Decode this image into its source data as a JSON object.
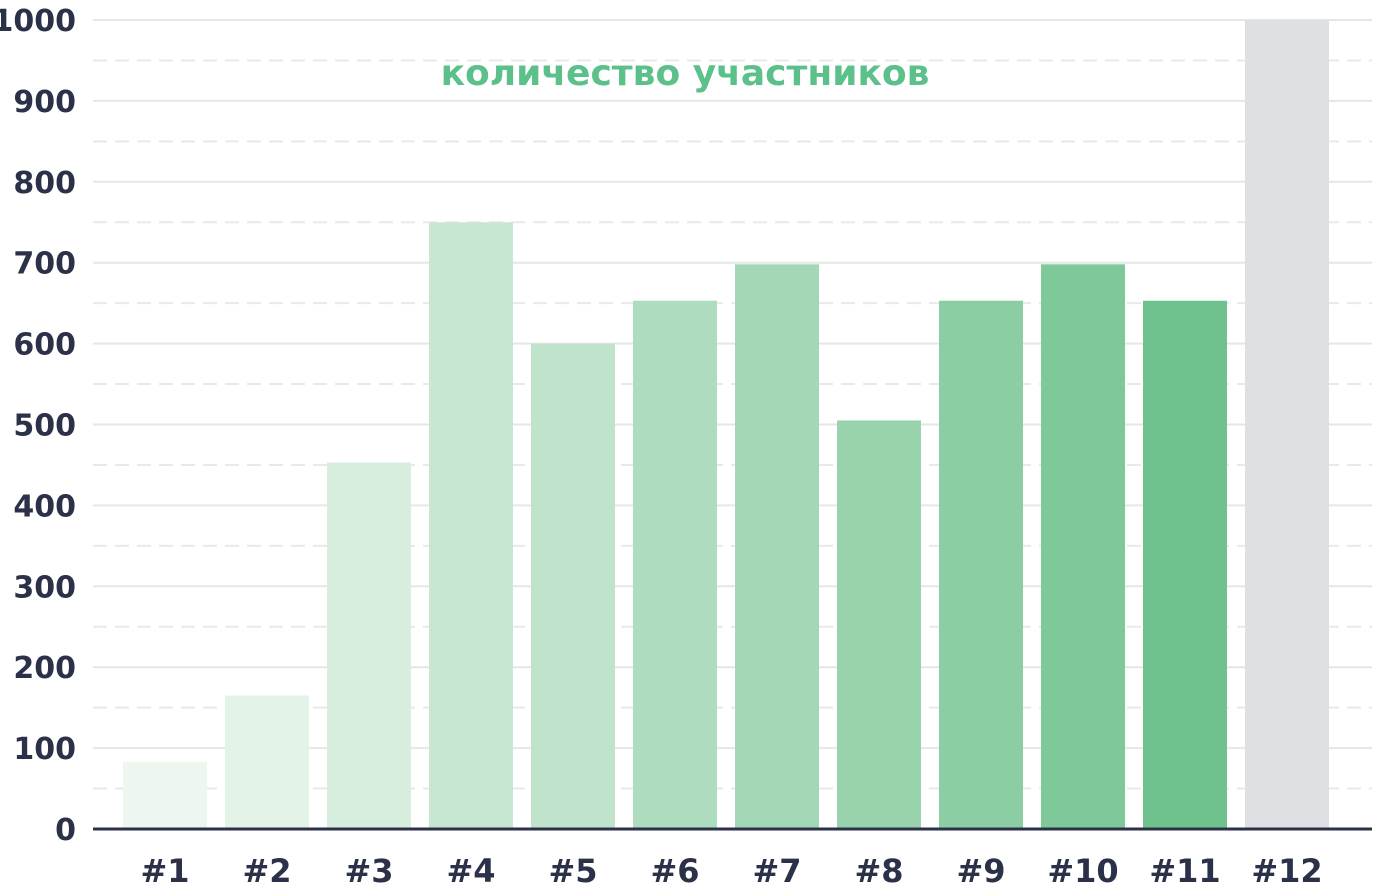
{
  "chart_data": {
    "type": "bar",
    "title": "количество участников",
    "categories": [
      "#1",
      "#2",
      "#3",
      "#4",
      "#5",
      "#6",
      "#7",
      "#8",
      "#9",
      "#10",
      "#11",
      "#12"
    ],
    "values": [
      83,
      165,
      453,
      750,
      600,
      653,
      698,
      505,
      653,
      698,
      653,
      1000
    ],
    "ylim": [
      0,
      1000
    ],
    "yticks": [
      0,
      100,
      200,
      300,
      400,
      500,
      600,
      700,
      800,
      900,
      1000
    ],
    "grid": true,
    "legend": "none",
    "xlabel": "",
    "ylabel": ""
  },
  "colors": {
    "title": "#5cc08a",
    "axis": "#2b3148",
    "grid_solid": "#e6e6e6",
    "grid_dashed": "#e9e9e9",
    "bars": [
      "#eef6f0",
      "#e4f3e8",
      "#d7eedf",
      "#c7e7d2",
      "#bfe4cb",
      "#addcbe",
      "#a3d8b6",
      "#98d3ad",
      "#8ccea4",
      "#7ec899",
      "#6fc28d",
      "#dfe0e4"
    ]
  }
}
